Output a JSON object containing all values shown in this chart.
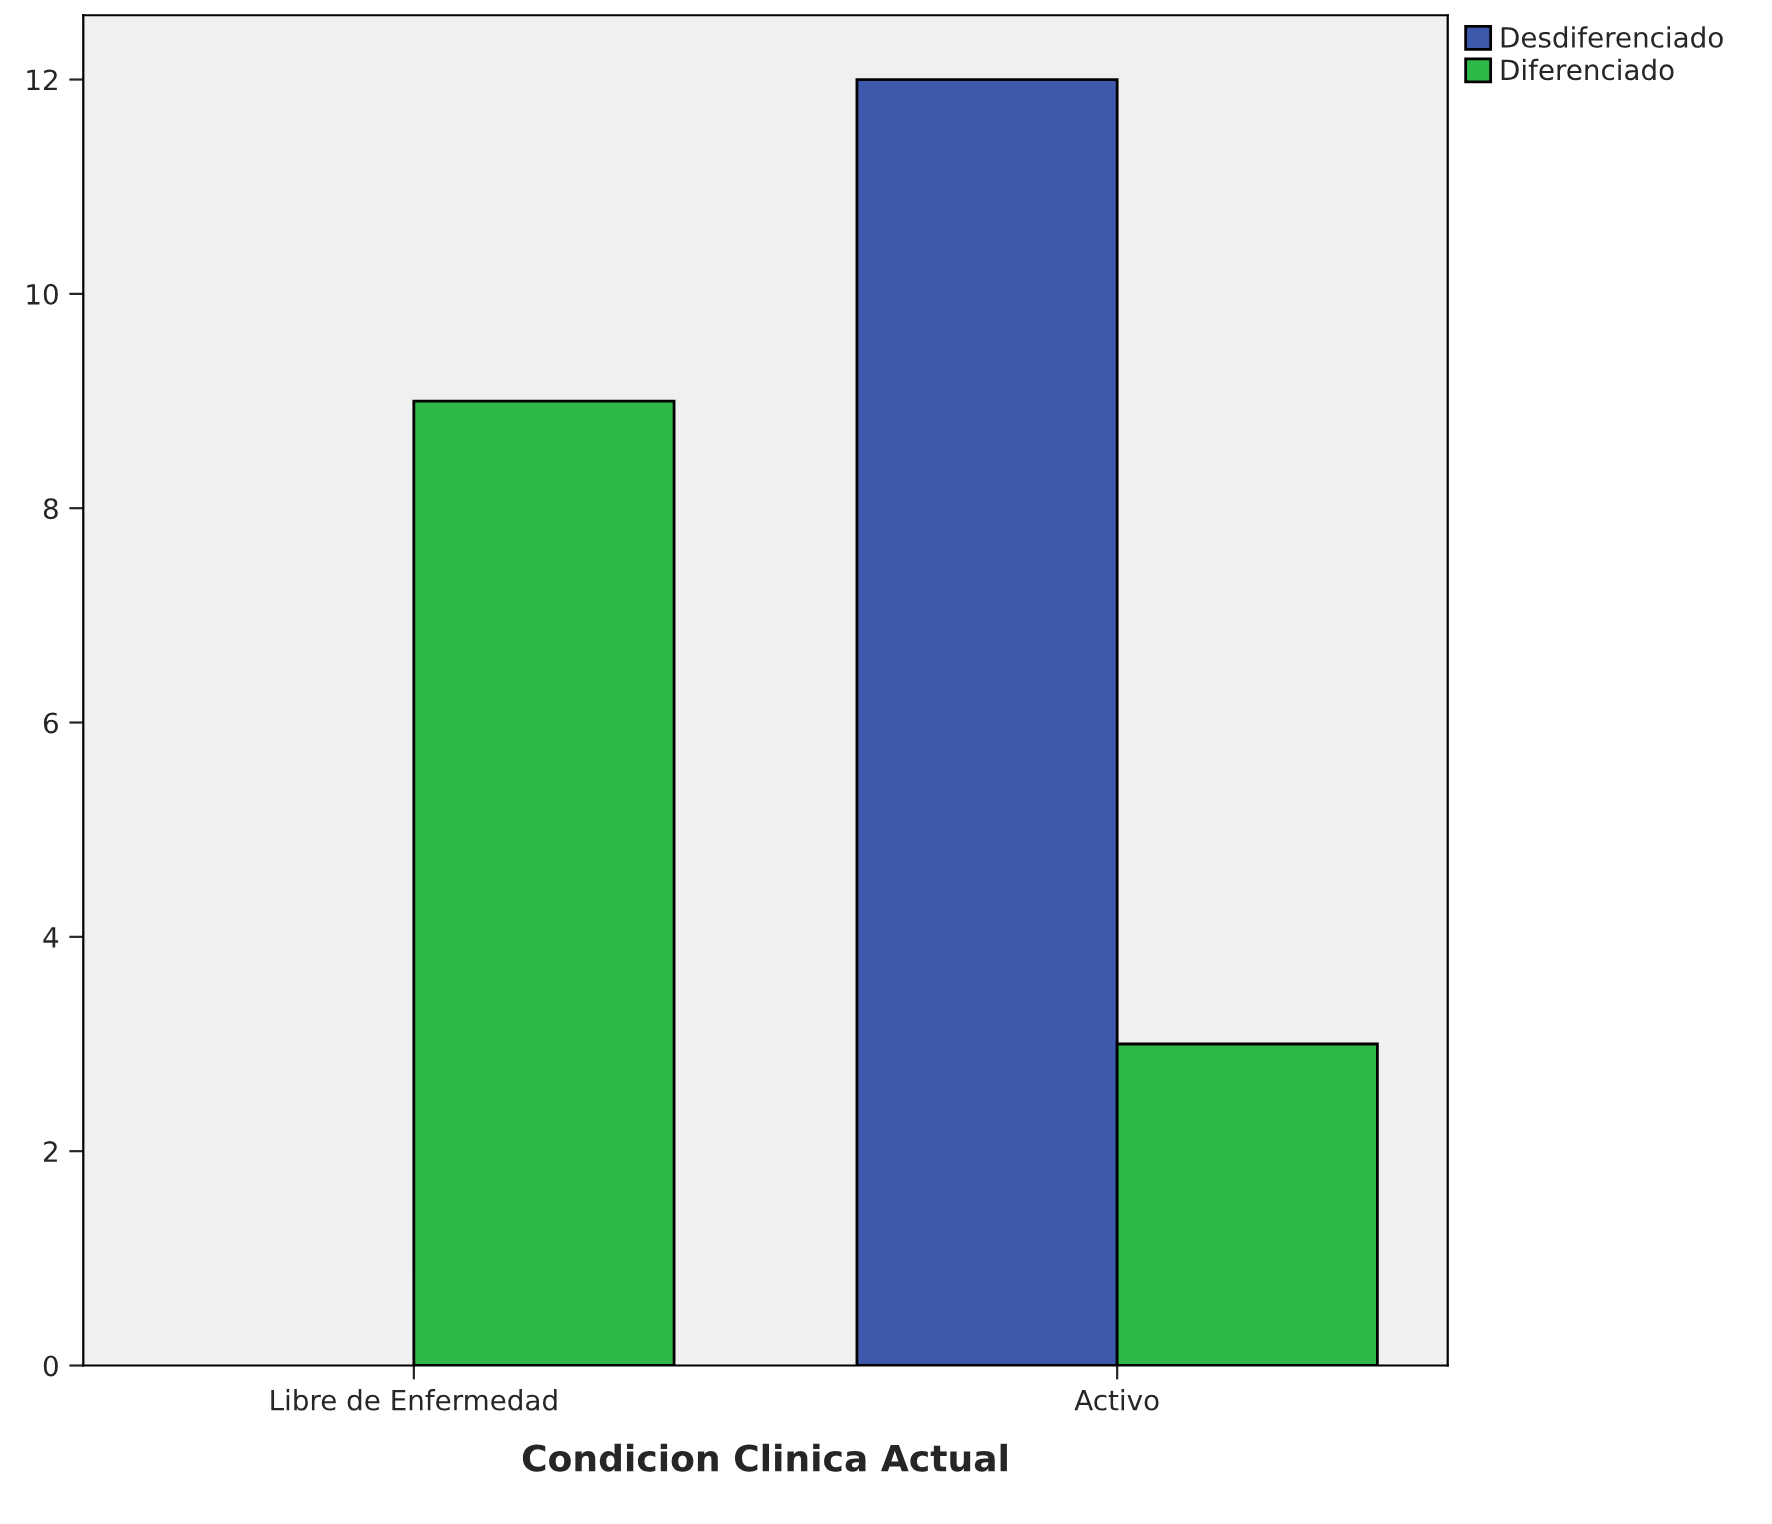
{
  "chart_data": {
    "type": "bar",
    "xlabel": "Condicion Clinica Actual",
    "categories": [
      "Libre de Enfermedad",
      "Activo"
    ],
    "series": [
      {
        "name": "Desdiferenciado",
        "color": "#3e58ac",
        "values": [
          null,
          12
        ]
      },
      {
        "name": "Diferenciado",
        "color": "#2eb848",
        "values": [
          9,
          3
        ]
      }
    ],
    "ylim": [
      0,
      12.6
    ],
    "yticks": [
      0,
      2,
      4,
      6,
      8,
      10,
      12
    ],
    "grid": false,
    "legend": "top right"
  }
}
